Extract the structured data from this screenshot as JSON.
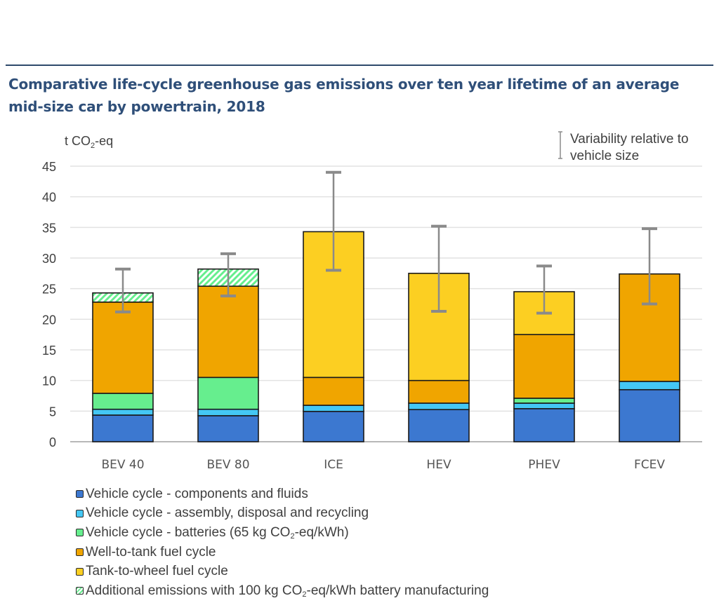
{
  "title": "Comparative life-cycle greenhouse gas emissions over ten year lifetime of an average mid-size car by powertrain, 2018",
  "chart_data": {
    "type": "bar",
    "stacked": true,
    "title": "Comparative life-cycle greenhouse gas emissions over ten year lifetime of an average mid-size car by powertrain, 2018",
    "ylabel": "t CO2-eq",
    "xlabel": "",
    "ylim": [
      0,
      45
    ],
    "yticks": [
      0,
      5,
      10,
      15,
      20,
      25,
      30,
      35,
      40,
      45
    ],
    "grid": true,
    "categories": [
      "BEV 40",
      "BEV 80",
      "ICE",
      "HEV",
      "PHEV",
      "FCEV"
    ],
    "series": [
      {
        "name": "Vehicle cycle - components and fluids",
        "color": "#3c78d0",
        "values": [
          4.35,
          4.25,
          4.95,
          5.25,
          5.4,
          8.5
        ]
      },
      {
        "name": "Vehicle cycle - assembly, disposal and recycling",
        "color": "#44c7f4",
        "values": [
          0.95,
          1.05,
          1.0,
          1.05,
          0.9,
          1.35
        ]
      },
      {
        "name": "Vehicle cycle - batteries (65 kg CO2-eq/kWh)",
        "color": "#66ee8e",
        "values": [
          2.6,
          5.2,
          0,
          0,
          0.8,
          0
        ]
      },
      {
        "name": "Well-to-tank fuel cycle",
        "color": "#f0a500",
        "values": [
          14.9,
          14.9,
          4.55,
          3.7,
          10.4,
          17.55
        ]
      },
      {
        "name": "Tank-to-wheel fuel cycle",
        "color": "#fccf22",
        "values": [
          0,
          0,
          23.8,
          17.5,
          7.0,
          0
        ]
      },
      {
        "name": "Additional emissions with 100 kg CO2-eq/kWh battery manufacturing",
        "color": "#66ee8e",
        "pattern": "hatched",
        "values": [
          1.5,
          2.8,
          0,
          0,
          0,
          0
        ]
      }
    ],
    "error_bars": {
      "label": "Variability relative to vehicle size",
      "low": [
        21.2,
        23.8,
        28.0,
        21.3,
        21.0,
        22.5
      ],
      "high": [
        28.2,
        30.7,
        44.0,
        35.2,
        28.7,
        34.8
      ]
    },
    "legend_position": "bottom-left"
  },
  "legend": [
    {
      "label": "Vehicle cycle - components and fluids"
    },
    {
      "label_pre": "Vehicle cycle - assembly, disposal and recycling"
    },
    {
      "label_pre": "Vehicle cycle - batteries (65 kg CO",
      "sub": "2",
      "label_post": "-eq/kWh)"
    },
    {
      "label": "Well-to-tank fuel cycle"
    },
    {
      "label": "Tank-to-wheel fuel cycle"
    },
    {
      "label_pre": "Additional emissions with 100 kg CO",
      "sub": "2",
      "label_post": "-eq/kWh battery manufacturing"
    }
  ],
  "axis": {
    "unit_pre": "t CO",
    "unit_sub": "2",
    "unit_post": "-eq"
  },
  "variability_note": {
    "line1": "Variability relative to",
    "line2": "vehicle size"
  }
}
